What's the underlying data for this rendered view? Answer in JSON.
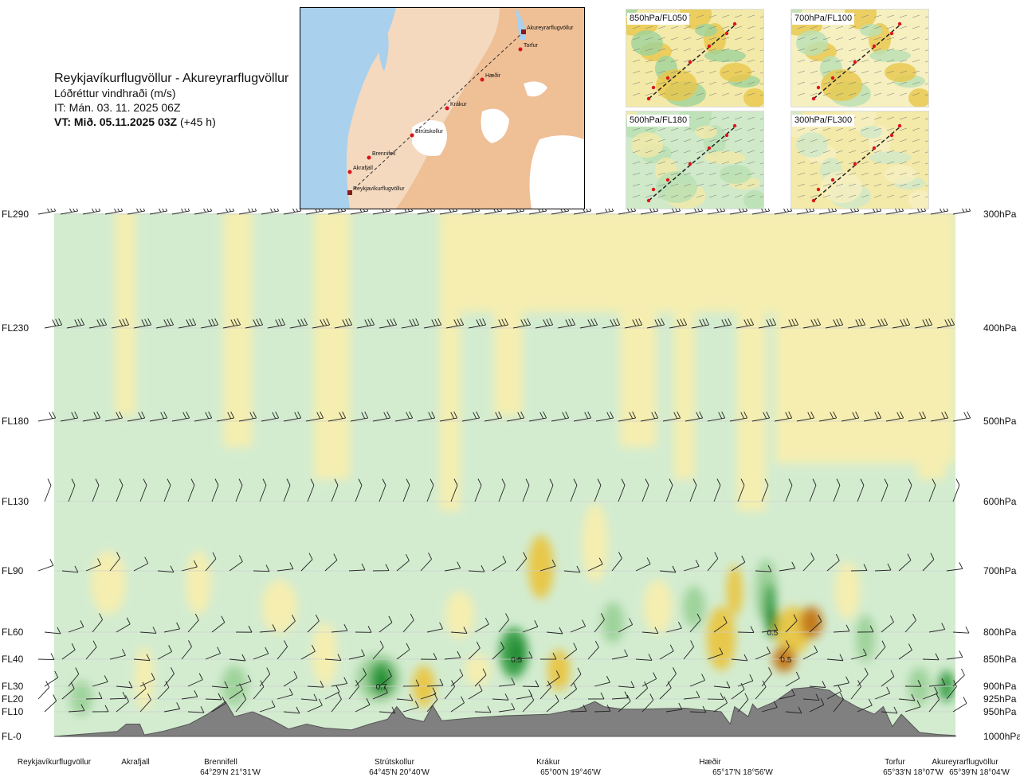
{
  "header": {
    "title": "Reykjavíkurflugvöllur - Akureyrarflugvöllur",
    "subtitle": "Lóðréttur vindhraði (m/s)",
    "initial_time": "IT: Mán. 03. 11. 2025 06Z",
    "valid_time_label": "VT: Mið. 05.11.2025 03Z",
    "valid_time_lead": " (+45 h)"
  },
  "route_map": {
    "waypoints": [
      "Akureyrarflugvöllur",
      "Torfur",
      "Hæðir",
      "Krákur",
      "Strútskollur",
      "Brennifell",
      "Akrafjall",
      "Reykjavíkurflugvöllur"
    ]
  },
  "mini_maps": [
    {
      "label": "850hPa/FL050"
    },
    {
      "label": "700hPa/FL100"
    },
    {
      "label": "500hPa/FL180"
    },
    {
      "label": "300hPa/FL300"
    }
  ],
  "chart_data": {
    "type": "heatmap",
    "title": "Lóðréttur vindhraði (m/s)",
    "left_axis": {
      "labels": [
        "FL290",
        "FL230",
        "FL180",
        "FL130",
        "FL90",
        "FL60",
        "FL40",
        "FL30",
        "FL20",
        "FL10",
        "FL-0"
      ],
      "pressure_hpa": [
        300,
        400,
        500,
        600,
        700,
        800,
        850,
        900,
        925,
        950,
        1000
      ]
    },
    "right_axis": {
      "labels": [
        "300hPa",
        "400hPa",
        "500hPa",
        "600hPa",
        "700hPa",
        "800hPa",
        "850hPa",
        "900hPa",
        "925hPa",
        "950hPa",
        "1000hPa"
      ]
    },
    "x_waypoints": [
      {
        "name": "Reykjavíkurflugvöllur",
        "coord": "",
        "frac": 0.0
      },
      {
        "name": "Akrafjall",
        "coord": "",
        "frac": 0.09
      },
      {
        "name": "Brennifell",
        "coord": "64°29'N 21°31'W",
        "frac": 0.19
      },
      {
        "name": "Strútskollur",
        "coord": "64°45'N 20°40'W",
        "frac": 0.378
      },
      {
        "name": "Krákur",
        "coord": "65°00'N 19°46'W",
        "frac": 0.574
      },
      {
        "name": "Hæðir",
        "coord": "65°17'N 18°56'W",
        "frac": 0.763
      },
      {
        "name": "Torfur",
        "coord": "65°33'N 18°07'W",
        "frac": 0.945
      },
      {
        "name": "Akureyrarflugvöllur",
        "coord": "65°39'N 18°04'W",
        "frac": 1.0
      }
    ],
    "annotations": [
      {
        "text": "0.7",
        "frac_x": 0.363,
        "pressure_hpa": 900
      },
      {
        "text": "0.5",
        "frac_x": 0.513,
        "pressure_hpa": 850
      },
      {
        "text": "0.5",
        "frac_x": 0.797,
        "pressure_hpa": 800
      },
      {
        "text": "0.5",
        "frac_x": 0.812,
        "pressure_hpa": 850
      }
    ],
    "colors": {
      "strong_up": "#1a8a2e",
      "up": "#3fa34d",
      "weak_up": "#9fd39b",
      "faint_up": "#d3ecd0",
      "near_zero": "#fbfbe8",
      "faint_down": "#f5eeb0",
      "down": "#e8c74a",
      "strong_down": "#c47a1e",
      "terrain": "#808080"
    }
  }
}
